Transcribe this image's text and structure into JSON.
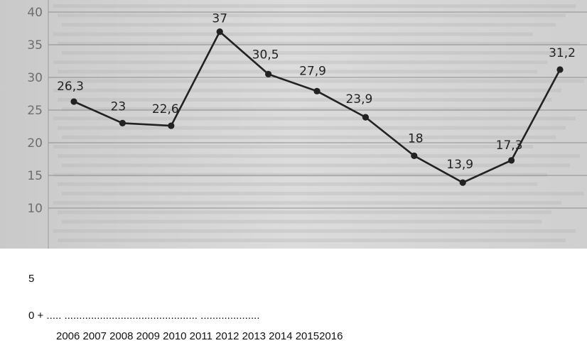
{
  "chart_data": {
    "type": "line",
    "x": [
      "2006",
      "2007",
      "2008",
      "2009",
      "2010",
      "2011",
      "2012",
      "2013",
      "2014",
      "2015",
      "2016"
    ],
    "series": [
      {
        "values": [
          26.3,
          23,
          22.6,
          37,
          30.5,
          27.9,
          23.9,
          18,
          13.9,
          17.3,
          31.2
        ],
        "data_labels": [
          "26,3",
          "23",
          "22,6",
          "37",
          "30,5",
          "27,9",
          "23,9",
          "18",
          "13,9",
          "17,3",
          "31,2"
        ]
      }
    ],
    "y_tick_labels": [
      "40",
      "35",
      "30",
      "25",
      "20",
      "15",
      "10"
    ],
    "ylim": [
      10,
      40
    ],
    "grid": true,
    "line_color": "#222222",
    "background": "photographed paper with faint printed text behind the chart"
  },
  "below_chart": {
    "tick_5": "5",
    "tick_0_line": "0 + ..... ............................................. ....................",
    "year_row": "2006 2007 2008 2009 2010 2011 2012 2013 2014 20152016"
  }
}
